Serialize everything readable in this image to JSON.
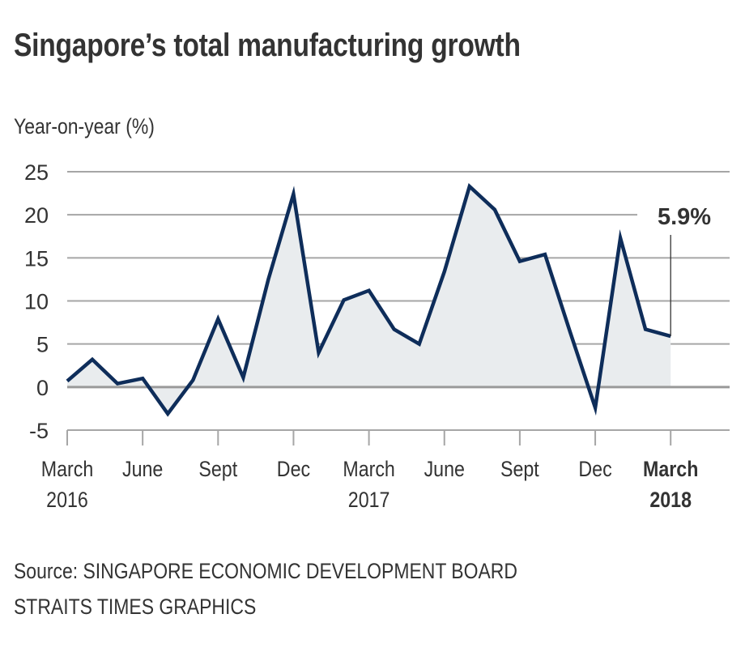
{
  "header": {
    "title": "Singapore’s total manufacturing growth"
  },
  "footer": {
    "source": "Source: SINGAPORE ECONOMIC DEVELOPMENT BOARD",
    "credit": "STRAITS TIMES GRAPHICS"
  },
  "colors": {
    "line": "#0e2d5a",
    "area_fill": "#e9ecee",
    "gridline": "#a6a6a6",
    "zero_line": "#9a9a9a",
    "text": "#333333"
  },
  "chart_data": {
    "type": "area",
    "title": "Singapore’s total manufacturing growth",
    "ylabel": "Year-on-year (%)",
    "xlabel": "",
    "ylim": [
      -5,
      25
    ],
    "yticks": [
      25,
      20,
      15,
      10,
      5,
      0,
      -5
    ],
    "grid": true,
    "x": [
      "Mar 2016",
      "Apr 2016",
      "May 2016",
      "Jun 2016",
      "Jul 2016",
      "Aug 2016",
      "Sep 2016",
      "Oct 2016",
      "Nov 2016",
      "Dec 2016",
      "Jan 2017",
      "Feb 2017",
      "Mar 2017",
      "Apr 2017",
      "May 2017",
      "Jun 2017",
      "Jul 2017",
      "Aug 2017",
      "Sep 2017",
      "Oct 2017",
      "Nov 2017",
      "Dec 2017",
      "Jan 2018",
      "Feb 2018",
      "Mar 2018"
    ],
    "series": [
      {
        "name": "Total manufacturing growth (YoY %)",
        "values": [
          0.7,
          3.2,
          0.4,
          1.0,
          -3.1,
          0.8,
          7.9,
          1.1,
          12.5,
          22.4,
          4.0,
          10.1,
          11.2,
          6.7,
          5.0,
          13.4,
          23.3,
          20.6,
          14.6,
          15.4,
          6.4,
          -2.4,
          17.3,
          6.7,
          5.9
        ]
      }
    ],
    "xtick_labels": [
      {
        "index": 0,
        "line1": "March",
        "line2": "2016",
        "bold": false
      },
      {
        "index": 3,
        "line1": "June",
        "line2": "",
        "bold": false
      },
      {
        "index": 6,
        "line1": "Sept",
        "line2": "",
        "bold": false
      },
      {
        "index": 9,
        "line1": "Dec",
        "line2": "",
        "bold": false
      },
      {
        "index": 12,
        "line1": "March",
        "line2": "2017",
        "bold": false
      },
      {
        "index": 15,
        "line1": "June",
        "line2": "",
        "bold": false
      },
      {
        "index": 18,
        "line1": "Sept",
        "line2": "",
        "bold": false
      },
      {
        "index": 21,
        "line1": "Dec",
        "line2": "",
        "bold": false
      },
      {
        "index": 24,
        "line1": "March",
        "line2": "2018",
        "bold": true
      }
    ],
    "annotations": [
      {
        "index": 24,
        "text": "5.9%"
      }
    ]
  }
}
